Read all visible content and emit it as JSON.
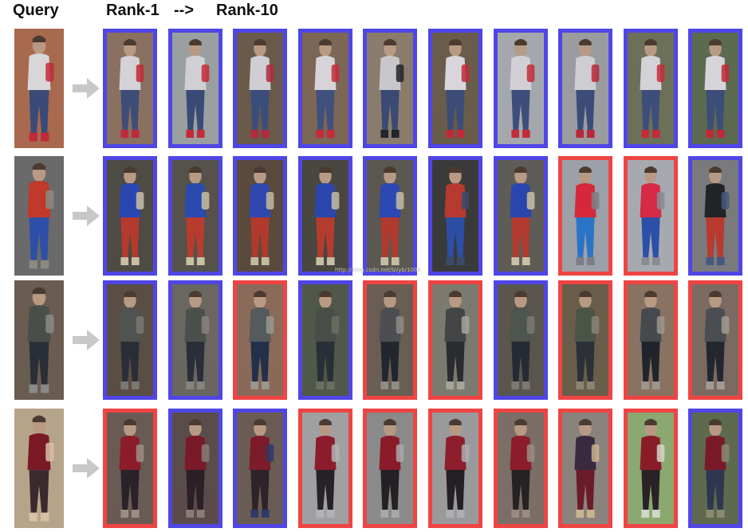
{
  "header": {
    "query_label": "Query",
    "rank_start": "Rank-1",
    "rank_arrow": "-->",
    "rank_end": "Rank-10"
  },
  "watermark": "http://blog.csdn.net/lz/yb/1000",
  "colors": {
    "correct_match_border": "#4f46e5",
    "wrong_match_border": "#ef4444",
    "arrow": "#c8c8c8"
  },
  "rows": [
    {
      "query": {
        "palette": [
          "#a86a4e",
          "#d8d6d8",
          "#3a4a78",
          "#c12a3a"
        ]
      },
      "ranks": [
        {
          "match": true,
          "palette": [
            "#8a7060",
            "#d4d2d6",
            "#3d4d78",
            "#c02a38"
          ]
        },
        {
          "match": true,
          "palette": [
            "#9aa0a0",
            "#d0d0d4",
            "#3a4a76",
            "#c42c3a"
          ]
        },
        {
          "match": true,
          "palette": [
            "#6a5a4c",
            "#cfcfd3",
            "#3b4d7a",
            "#b02a40"
          ]
        },
        {
          "match": true,
          "palette": [
            "#7c6656",
            "#d6d4d8",
            "#40507c",
            "#c42c3a"
          ]
        },
        {
          "match": true,
          "palette": [
            "#8a7c6c",
            "#c8c6ca",
            "#3a4a74",
            "#22252a"
          ]
        },
        {
          "match": true,
          "palette": [
            "#6a5c4a",
            "#d8d6da",
            "#3c4c78",
            "#c02a38"
          ]
        },
        {
          "match": true,
          "palette": [
            "#a4a8ac",
            "#d2d0d4",
            "#3e4e7c",
            "#c42c3a"
          ]
        },
        {
          "match": true,
          "palette": [
            "#9a9ca0",
            "#cecdd2",
            "#3c4c78",
            "#b8283a"
          ]
        },
        {
          "match": true,
          "palette": [
            "#6c7058",
            "#d4d2d6",
            "#3e4e7a",
            "#c42c3a"
          ]
        },
        {
          "match": true,
          "palette": [
            "#5c6a50",
            "#d6d4d8",
            "#3d4d79",
            "#c02a38"
          ]
        }
      ]
    },
    {
      "query": {
        "palette": [
          "#6a6a6a",
          "#c0392b",
          "#2e4fa8",
          "#8c8a80"
        ]
      },
      "ranks": [
        {
          "match": true,
          "palette": [
            "#4e4a44",
            "#2a46b0",
            "#b53a2e",
            "#c7bfa6"
          ]
        },
        {
          "match": true,
          "palette": [
            "#54524a",
            "#2b4aae",
            "#b83c2e",
            "#c8c0a2"
          ]
        },
        {
          "match": true,
          "palette": [
            "#5a4a3e",
            "#2e48b0",
            "#b03a2c",
            "#c2ba9e"
          ]
        },
        {
          "match": true,
          "palette": [
            "#4a4640",
            "#2b47ae",
            "#b43c2e",
            "#c6bea4"
          ]
        },
        {
          "match": true,
          "palette": [
            "#5a5850",
            "#2c48b2",
            "#b03a2e",
            "#c5bda3"
          ]
        },
        {
          "match": true,
          "palette": [
            "#3a3a3a",
            "#b73a30",
            "#2c4ea4",
            "#3c4a6a"
          ]
        },
        {
          "match": true,
          "palette": [
            "#5e5c56",
            "#2a46ae",
            "#b23a2e",
            "#c8c0a4"
          ]
        },
        {
          "match": false,
          "palette": [
            "#9ca0a8",
            "#d6283a",
            "#2a74c8",
            "#7c7e86"
          ]
        },
        {
          "match": false,
          "palette": [
            "#a6aab0",
            "#d72a44",
            "#2c4fa8",
            "#8a8c94"
          ]
        },
        {
          "match": true,
          "palette": [
            "#7a7a7c",
            "#222428",
            "#b83a30",
            "#46587e"
          ]
        }
      ]
    },
    {
      "query": {
        "palette": [
          "#6a5c50",
          "#4a4e4a",
          "#2a2e36",
          "#8a8a88"
        ]
      },
      "ranks": [
        {
          "match": true,
          "palette": [
            "#5a4e44",
            "#505450",
            "#2a2e36",
            "#7a7874"
          ]
        },
        {
          "match": true,
          "palette": [
            "#6a6660",
            "#4c504c",
            "#2a2e38",
            "#868480"
          ]
        },
        {
          "match": false,
          "palette": [
            "#8a6a58",
            "#555a5c",
            "#22304a",
            "#9a968e"
          ]
        },
        {
          "match": true,
          "palette": [
            "#50584a",
            "#4a4e48",
            "#2a2e36",
            "#6a7060"
          ]
        },
        {
          "match": false,
          "palette": [
            "#6a5e54",
            "#4c4e52",
            "#22262e",
            "#908c86"
          ]
        },
        {
          "match": false,
          "palette": [
            "#7c7a6e",
            "#424446",
            "#2a2c30",
            "#a4a49c"
          ]
        },
        {
          "match": true,
          "palette": [
            "#5a564e",
            "#4e544e",
            "#262a32",
            "#7a7a70"
          ]
        },
        {
          "match": false,
          "palette": [
            "#6a5e4a",
            "#4c5448",
            "#2c3038",
            "#8a8474"
          ]
        },
        {
          "match": false,
          "palette": [
            "#8a7262",
            "#464a4e",
            "#20242c",
            "#9c968c"
          ]
        },
        {
          "match": false,
          "palette": [
            "#7c6a62",
            "#4a4e52",
            "#23272e",
            "#a29a92"
          ]
        }
      ]
    },
    {
      "query": {
        "palette": [
          "#b6a48a",
          "#7a1a26",
          "#3a2a2e",
          "#d8c0a4"
        ]
      },
      "ranks": [
        {
          "match": false,
          "palette": [
            "#6a5a54",
            "#8c1c2a",
            "#2a2228",
            "#9a8e84"
          ]
        },
        {
          "match": true,
          "palette": [
            "#5a4c4a",
            "#7a1a28",
            "#2a2026",
            "#8a7c76"
          ]
        },
        {
          "match": true,
          "palette": [
            "#6a5c54",
            "#7c1c2a",
            "#2c2428",
            "#2e3a6a"
          ]
        },
        {
          "match": false,
          "palette": [
            "#a0a0a2",
            "#8c1c2c",
            "#262226",
            "#b2b2b4"
          ]
        },
        {
          "match": false,
          "palette": [
            "#8a8a8a",
            "#8a1c2a",
            "#242024",
            "#a8a8a8"
          ]
        },
        {
          "match": false,
          "palette": [
            "#9a9a9c",
            "#8e1e2c",
            "#242024",
            "#aeaeb0"
          ]
        },
        {
          "match": false,
          "palette": [
            "#7a6e66",
            "#8c1c2a",
            "#262224",
            "#9a8c84"
          ]
        },
        {
          "match": false,
          "palette": [
            "#8a827c",
            "#3a2a40",
            "#6a1c2a",
            "#c8b48e"
          ]
        },
        {
          "match": false,
          "palette": [
            "#8aa870",
            "#8a1c2a",
            "#2a2226",
            "#d2d6c8"
          ]
        },
        {
          "match": true,
          "palette": [
            "#5e6a4e",
            "#7a1a28",
            "#2e3650",
            "#8a8a70"
          ]
        }
      ]
    }
  ]
}
